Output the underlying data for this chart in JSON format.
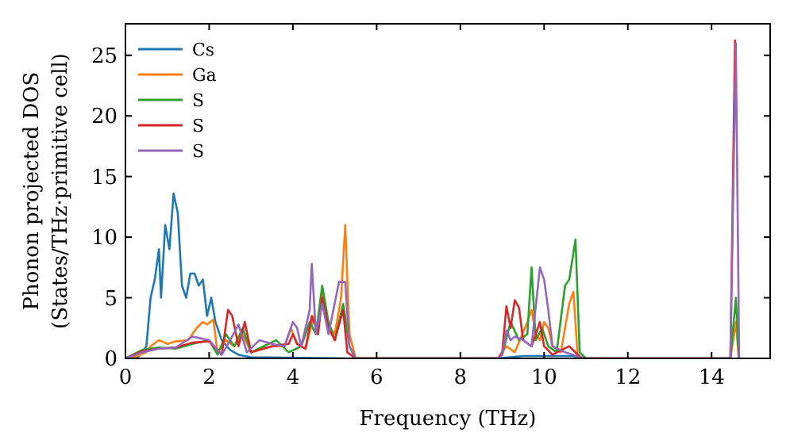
{
  "chart_data": {
    "type": "line",
    "xlabel": "Frequency (THz)",
    "ylabel": "Phonon projected DOS\n(States/THz·primitive cell)",
    "xlim": [
      0,
      15.4
    ],
    "ylim": [
      0,
      27.6
    ],
    "xticks": [
      0,
      2,
      4,
      6,
      8,
      10,
      12,
      14
    ],
    "yticks": [
      0,
      5,
      10,
      15,
      20,
      25
    ],
    "grid": false,
    "legend": "top left",
    "series": [
      {
        "name": "Cs",
        "color": "#1f77b4",
        "x": [
          0,
          0.3,
          0.5,
          0.6,
          0.7,
          0.8,
          0.85,
          0.95,
          1.05,
          1.15,
          1.25,
          1.35,
          1.45,
          1.55,
          1.65,
          1.75,
          1.85,
          1.95,
          2.05,
          2.15,
          2.3,
          2.5,
          2.7,
          3,
          5.3,
          8.9,
          9.5,
          10,
          10.7,
          11
        ],
        "values": [
          0,
          0.1,
          1,
          5,
          6.5,
          9,
          5,
          11,
          9,
          13.6,
          12,
          6,
          5,
          7,
          7,
          6,
          6.5,
          3.5,
          5,
          3,
          1.5,
          0.7,
          0.3,
          0.1,
          0,
          0,
          0.2,
          0.2,
          0.2,
          0
        ]
      },
      {
        "name": "Ga",
        "color": "#ff7f0e",
        "x": [
          0,
          0.2,
          0.5,
          0.6,
          0.8,
          1.0,
          1.2,
          1.5,
          1.7,
          1.85,
          1.95,
          2.1,
          2.2,
          2.4,
          2.6,
          2.8,
          3.0,
          3.5,
          3.8,
          3.95,
          4.1,
          4.3,
          4.5,
          4.6,
          4.7,
          4.8,
          5.0,
          5.15,
          5.25,
          5.35,
          5.5,
          8.9,
          9.1,
          9.3,
          9.6,
          9.7,
          9.8,
          9.9,
          10.0,
          10.1,
          10.2,
          10.4,
          10.6,
          10.7,
          10.8,
          10.9,
          14.45,
          14.58,
          14.65
        ],
        "values": [
          0,
          0.1,
          0.5,
          1,
          1.5,
          1.2,
          1.4,
          1.5,
          2.5,
          3,
          2.8,
          3.2,
          0.5,
          1.5,
          1,
          2,
          0.5,
          1,
          1,
          2.5,
          1.2,
          0.8,
          3.5,
          2,
          5.5,
          3,
          2,
          5,
          11,
          2,
          0,
          0,
          1,
          0.5,
          3,
          4,
          2,
          1.5,
          3,
          2.5,
          1,
          0.5,
          4.5,
          5.5,
          0.3,
          0,
          0,
          3,
          0
        ]
      },
      {
        "name": "S",
        "color": "#2ca02c",
        "x": [
          0,
          0.4,
          0.8,
          1.2,
          1.6,
          2.0,
          2.2,
          2.4,
          2.6,
          2.8,
          3.0,
          3.3,
          3.6,
          3.9,
          4.2,
          4.4,
          4.55,
          4.7,
          4.85,
          5.0,
          5.2,
          5.35,
          5.5,
          8.9,
          9.0,
          9.2,
          9.4,
          9.6,
          9.7,
          9.8,
          9.95,
          10.1,
          10.3,
          10.5,
          10.6,
          10.75,
          10.85,
          11,
          14.45,
          14.58,
          14.65
        ],
        "values": [
          0,
          0.7,
          0.9,
          0.8,
          1.2,
          1.5,
          0.3,
          2,
          1,
          2.5,
          0.5,
          1,
          1.5,
          0.5,
          1,
          3,
          2,
          6,
          3,
          1.5,
          4.5,
          1,
          0,
          0,
          0.3,
          3,
          1.5,
          2,
          7.5,
          1.5,
          2.5,
          1,
          0.5,
          6,
          6.5,
          9.8,
          0.5,
          0,
          0,
          5,
          0
        ]
      },
      {
        "name": "S",
        "color": "#d62728",
        "x": [
          0,
          0.4,
          0.8,
          1.2,
          1.6,
          2.0,
          2.3,
          2.45,
          2.55,
          2.7,
          2.85,
          3.0,
          3.5,
          3.9,
          4.0,
          4.1,
          4.3,
          4.45,
          4.6,
          4.7,
          4.85,
          5.0,
          5.2,
          5.3,
          5.5,
          8.9,
          9.0,
          9.1,
          9.2,
          9.3,
          9.4,
          9.5,
          9.7,
          9.9,
          10.0,
          10.2,
          10.6,
          10.75,
          10.9,
          14.45,
          14.56
        ],
        "values": [
          0,
          0.6,
          0.8,
          0.9,
          1.3,
          1.4,
          0.3,
          4,
          3.5,
          1,
          3,
          0.5,
          1,
          1.2,
          2,
          1.2,
          0.8,
          3.5,
          2,
          5,
          2.5,
          1.5,
          4,
          0.5,
          0,
          0,
          0.5,
          4.3,
          2.5,
          4.8,
          4.2,
          1.5,
          1,
          3,
          1,
          0.3,
          1,
          0.5,
          0,
          0,
          26.3
        ]
      },
      {
        "name": "S",
        "color": "#9467bd",
        "x": [
          0,
          0.4,
          0.8,
          1.2,
          1.6,
          2.0,
          2.3,
          2.5,
          2.7,
          2.9,
          3.2,
          3.5,
          3.8,
          4.0,
          4.1,
          4.2,
          4.4,
          4.45,
          4.55,
          4.7,
          4.85,
          5.1,
          5.25,
          5.35,
          5.5,
          8.9,
          9.0,
          9.1,
          9.2,
          9.3,
          9.5,
          9.7,
          9.9,
          10.0,
          10.1,
          10.2,
          10.5,
          10.7,
          10.9,
          14.45,
          14.58,
          14.66
        ],
        "values": [
          0,
          0.5,
          0.8,
          0.9,
          1.8,
          1.5,
          0.3,
          1.5,
          2.8,
          0.5,
          1.5,
          1.2,
          1,
          3,
          2.5,
          1,
          4,
          7.8,
          2,
          4.5,
          2,
          6.3,
          6.3,
          1,
          0,
          0,
          0.3,
          2.3,
          1.5,
          1.8,
          1.5,
          1,
          7.5,
          6.5,
          4,
          1,
          0.5,
          0.3,
          0,
          0,
          26.0,
          0
        ]
      }
    ]
  }
}
